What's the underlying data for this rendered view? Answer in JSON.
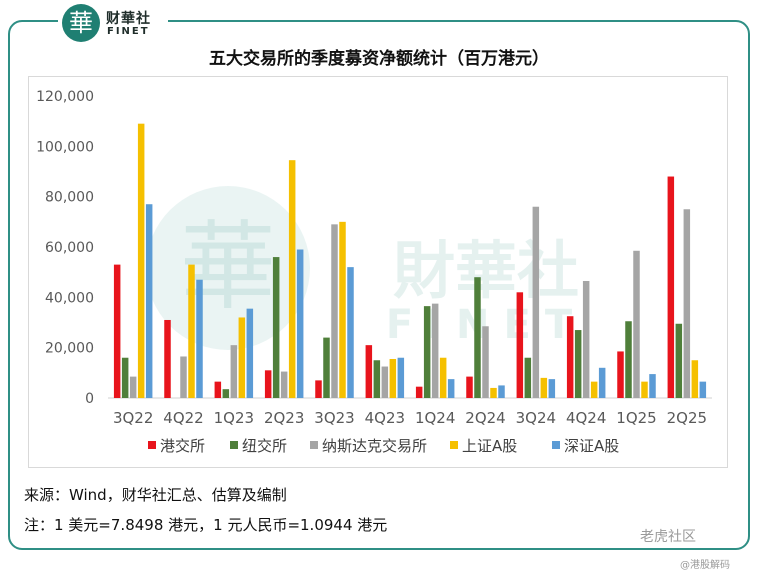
{
  "logo": {
    "seal_char": "華",
    "cn": "财華社",
    "en": "FINET"
  },
  "watermark": {
    "cn": "財華社",
    "en": "FINET"
  },
  "chart_data": {
    "type": "bar",
    "title": "五大交易所的季度募资净额统计（百万港元）",
    "categories": [
      "3Q22",
      "4Q22",
      "1Q23",
      "2Q23",
      "3Q23",
      "4Q23",
      "1Q24",
      "2Q24",
      "3Q24",
      "4Q24",
      "1Q25",
      "2Q25"
    ],
    "series": [
      {
        "name": "港交所",
        "color": "#e8141c",
        "values": [
          53000,
          31000,
          6500,
          11000,
          7000,
          21000,
          4500,
          8500,
          42000,
          32500,
          18500,
          88000
        ]
      },
      {
        "name": "纽交所",
        "color": "#4f7f3a",
        "values": [
          16000,
          0,
          3500,
          56000,
          24000,
          15000,
          36500,
          48000,
          16000,
          27000,
          30500,
          29500
        ]
      },
      {
        "name": "纳斯达克交易所",
        "color": "#a5a5a5",
        "values": [
          8500,
          16500,
          21000,
          10500,
          69000,
          12500,
          37500,
          28500,
          76000,
          46500,
          58500,
          75000
        ]
      },
      {
        "name": "上证A股",
        "color": "#f5c000",
        "values": [
          109000,
          53000,
          32000,
          94500,
          70000,
          15500,
          16000,
          4000,
          8000,
          6500,
          6500,
          15000
        ]
      },
      {
        "name": "深证A股",
        "color": "#5b9bd5",
        "values": [
          77000,
          47000,
          35500,
          59000,
          52000,
          16000,
          7500,
          5000,
          7500,
          12000,
          9500,
          6500
        ]
      }
    ],
    "ylim": [
      0,
      120000
    ],
    "yticks": [
      0,
      20000,
      40000,
      60000,
      80000,
      100000,
      120000
    ],
    "ytick_labels": [
      "0",
      "20,000",
      "40,000",
      "60,000",
      "80,000",
      "100,000",
      "120,000"
    ],
    "grid": false,
    "legend": "bottom"
  },
  "footer": {
    "source": "来源：Wind，财华社汇总、估算及编制",
    "note": "注：1 美元=7.8498 港元，1 元人民币=1.0944 港元"
  },
  "corner_watermark": {
    "main": "老虎社区",
    "sub": "@港股解码"
  }
}
